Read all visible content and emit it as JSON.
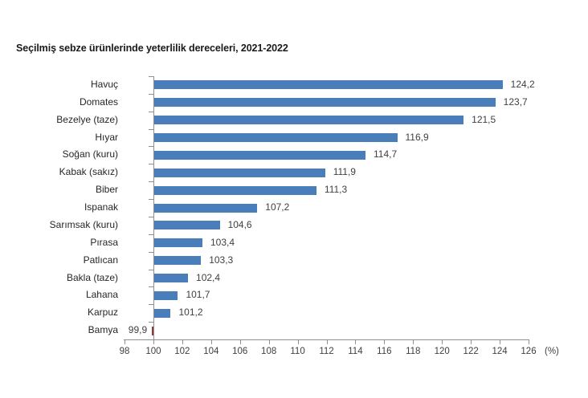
{
  "title": "Seçilmiş sebze ürünlerinde yeterlilik dereceleri, 2021-2022",
  "chart_data": {
    "type": "bar",
    "orientation": "horizontal",
    "title": "Seçilmiş sebze ürünlerinde yeterlilik dereceleri, 2021-2022",
    "categories": [
      "Havuç",
      "Domates",
      "Bezelye (taze)",
      "Hıyar",
      "Soğan (kuru)",
      "Kabak (sakız)",
      "Biber",
      "Ispanak",
      "Sarımsak (kuru)",
      "Pırasa",
      "Patlıcan",
      "Bakla (taze)",
      "Lahana",
      "Karpuz",
      "Bamya"
    ],
    "values": [
      124.2,
      123.7,
      121.5,
      116.9,
      114.7,
      111.9,
      111.3,
      107.2,
      104.6,
      103.4,
      103.3,
      102.4,
      101.7,
      101.2,
      99.9
    ],
    "value_labels": [
      "124,2",
      "123,7",
      "121,5",
      "116,9",
      "114,7",
      "111,9",
      "111,3",
      "107,2",
      "104,6",
      "103,4",
      "103,3",
      "102,4",
      "101,7",
      "101,2",
      "99,9"
    ],
    "xlabel": "",
    "ylabel": "",
    "x_unit_label": "(%)",
    "xlim": [
      98,
      126
    ],
    "baseline": 100,
    "x_ticks": [
      98,
      100,
      102,
      104,
      106,
      108,
      110,
      112,
      114,
      116,
      118,
      120,
      122,
      124,
      126
    ],
    "x_tick_labels": [
      "98",
      "100",
      "102",
      "104",
      "106",
      "108",
      "110",
      "112",
      "114",
      "116",
      "118",
      "120",
      "122",
      "124",
      "126"
    ],
    "grid": false,
    "legend": null,
    "colors": {
      "bar": "#4a7ebb",
      "bar_below_baseline": "#963634",
      "axis": "#8f8f8f",
      "value_text": "#404040",
      "category_text": "#262626"
    }
  }
}
